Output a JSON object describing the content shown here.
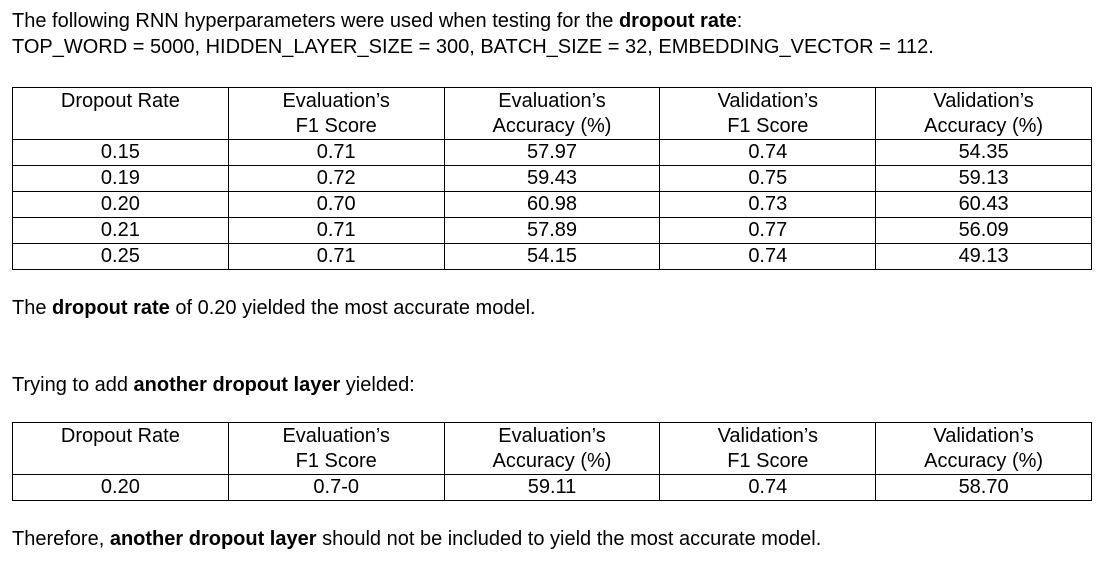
{
  "intro": {
    "line1_prefix": "The following RNN hyperparameters were used when testing for the ",
    "line1_bold": "dropout rate",
    "line1_suffix": ":",
    "line2": "TOP_WORD = 5000, HIDDEN_LAYER_SIZE = 300, BATCH_SIZE = 32, EMBEDDING_VECTOR = 112."
  },
  "table1": {
    "headers": [
      [
        "Dropout Rate"
      ],
      [
        "Evaluation’s",
        "F1 Score"
      ],
      [
        "Evaluation’s",
        "Accuracy (%)"
      ],
      [
        "Validation’s",
        "F1 Score"
      ],
      [
        "Validation’s",
        "Accuracy (%)"
      ]
    ],
    "rows": [
      [
        "0.15",
        "0.71",
        "57.97",
        "0.74",
        "54.35"
      ],
      [
        "0.19",
        "0.72",
        "59.43",
        "0.75",
        "59.13"
      ],
      [
        "0.20",
        "0.70",
        "60.98",
        "0.73",
        "60.43"
      ],
      [
        "0.21",
        "0.71",
        "57.89",
        "0.77",
        "56.09"
      ],
      [
        "0.25",
        "0.71",
        "54.15",
        "0.74",
        "49.13"
      ]
    ]
  },
  "conclusion1": {
    "prefix": "The ",
    "bold": "dropout rate",
    "suffix": " of 0.20 yielded the most accurate model."
  },
  "trial": {
    "prefix": "Trying to add ",
    "bold": "another dropout layer",
    "suffix": " yielded:"
  },
  "table2": {
    "headers": [
      [
        "Dropout Rate"
      ],
      [
        "Evaluation’s",
        "F1 Score"
      ],
      [
        "Evaluation’s",
        "Accuracy (%)"
      ],
      [
        "Validation’s",
        "F1 Score"
      ],
      [
        "Validation’s",
        "Accuracy (%)"
      ]
    ],
    "rows": [
      [
        "0.20",
        "0.7-0",
        "59.11",
        "0.74",
        "58.70"
      ]
    ]
  },
  "conclusion2": {
    "prefix": "Therefore, ",
    "bold": "another dropout layer",
    "suffix": " should not be included to yield the most accurate model."
  }
}
